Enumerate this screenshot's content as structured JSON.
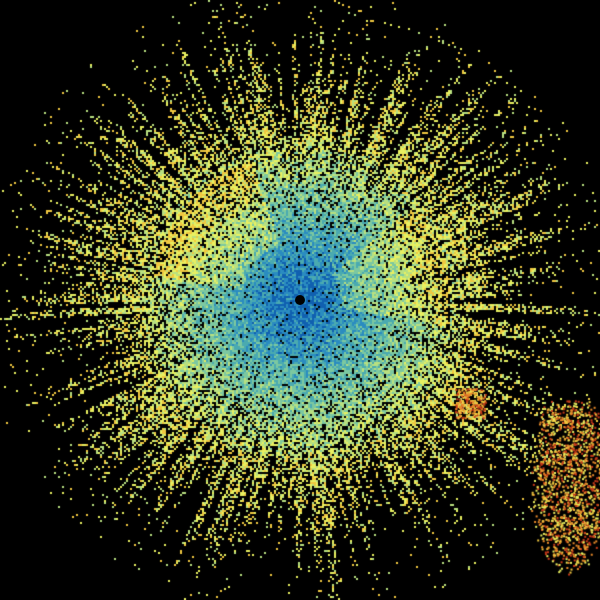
{
  "image": {
    "kind": "radar-reflectivity-scan",
    "background_color": "#000000",
    "palette": [
      "#1060b0",
      "#2a8cc0",
      "#4aaab0",
      "#7cc8a0",
      "#b8e080",
      "#e8f060",
      "#f0c840",
      "#e88a2a",
      "#c83a1a"
    ],
    "radar_site_color": "#000000"
  }
}
